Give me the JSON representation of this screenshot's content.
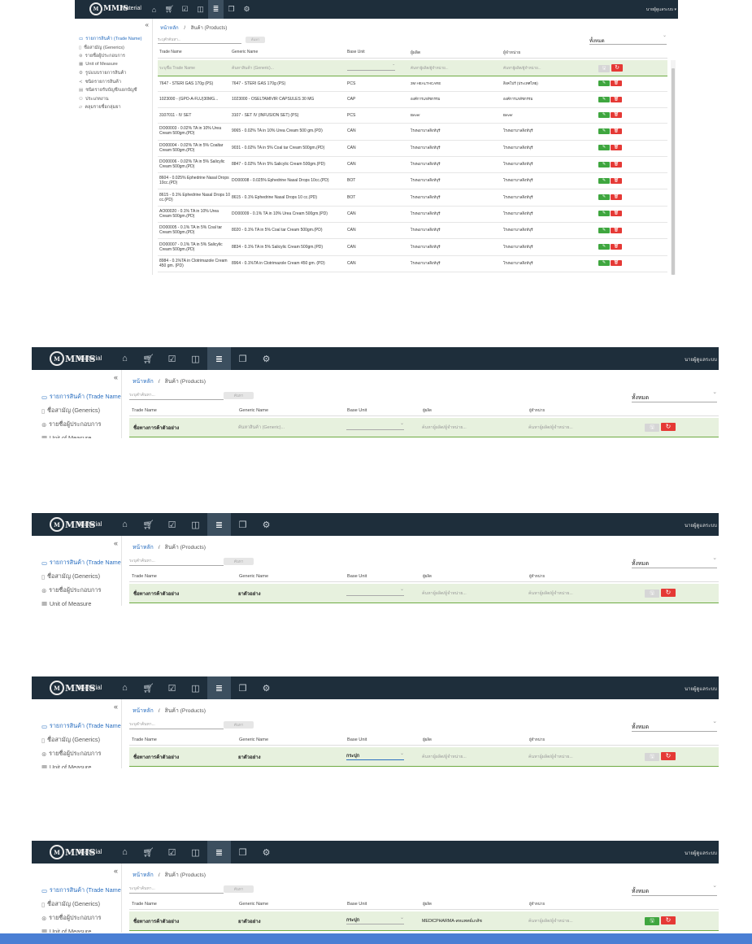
{
  "app": {
    "name": "Material",
    "logo_text": "MMIS",
    "user_full": "นายผู้ดูแลระบบ ▾",
    "user_short": "นายผู้ดูแลระบบ",
    "nav": [
      "home-icon",
      "cart-icon",
      "check-box-icon",
      "card-icon",
      "database-icon",
      "document-icon",
      "gear-icon"
    ],
    "nav_glyphs": [
      "⌂",
      "🛒︎",
      "☑",
      "◫",
      "≣",
      "❒",
      "⚙"
    ],
    "active_nav": 4
  },
  "sidebar": {
    "collapse": "«",
    "items": [
      {
        "label": "รายการสินค้า (Trade Name)",
        "icon": "folder-icon",
        "glyph": "▭"
      },
      {
        "label": "ชื่อสามัญ (Generics)",
        "icon": "file-icon",
        "glyph": "▯"
      },
      {
        "label": "รายชื่อผู้ประกอบการ",
        "icon": "users-icon",
        "glyph": "⊛"
      },
      {
        "label": "Unit of Measure",
        "icon": "grid-icon",
        "glyph": "▦"
      },
      {
        "label": "รูปแบบรายการสินค้า",
        "icon": "cog-icon",
        "glyph": "⚙"
      },
      {
        "label": "ชนิดรายการสินค้า",
        "icon": "share-icon",
        "glyph": "≺"
      },
      {
        "label": "ชนิดรายรับบัญชี/แยกบัญชี",
        "icon": "list-icon",
        "glyph": "▤"
      },
      {
        "label": "ประเภทงาน",
        "icon": "people-icon",
        "glyph": "⚇"
      },
      {
        "label": "คลุมรายชื่อกลุ่มยา",
        "icon": "folder-open-icon",
        "glyph": "▱"
      }
    ]
  },
  "breadcrumb": {
    "home": "หน้าหลัก",
    "sep": "/",
    "current": "สินค้า (Products)"
  },
  "search": {
    "placeholder": "ระบุคำค้นหา...",
    "button": "ค้นหา"
  },
  "filter": {
    "value": "ทั้งหมด",
    "chevron": "⌄"
  },
  "table": {
    "headers": [
      "Trade Name",
      "Generic Name",
      "Base Unit",
      "ผู้ผลิต",
      "ผู้จำหน่าย"
    ],
    "headers_small": [
      "Trade Name",
      "Generic Name",
      "Base Unit",
      "ผู้ผลิต",
      "ผู้จำหน่าย"
    ],
    "edit_placeholders": {
      "trade": "ระบุชื่อ Trade Name",
      "generic": "ค้นหาสินค้า (Generic)...",
      "maker": "ค้นหาผู้ผลิต/ผู้จำหน่าย...",
      "dealer": "ค้นหาผู้ผลิต/ผู้จำหน่าย..."
    },
    "rows": [
      [
        "7647 - STERI GAS 170g (PS)",
        "7647 - STERI GAS 170g (PS)",
        "PCS",
        "3M HEALTHCARE",
        "สิงคโปร์ (ประเทศไทย)"
      ],
      [
        "1023000 - (GPO-A-FLU)30MG...",
        "1023000 - OSELTAMIVIR CAPSULES 30 MG",
        "CAP",
        "องค์การเภสัชกรรม",
        "องค์การเภสัชกรรม"
      ],
      [
        "3107011 - IV SET",
        "3107 - SET IV (INFUSION SET) (PS)",
        "PCS",
        "Bever",
        "Bever"
      ],
      [
        "DO00003 - 0.02% TA in 10% Urea Cream 500gm.(PD)",
        "9065 - 0.02% TA in 10% Urea Cream 500 gm.(PD)",
        "CAN",
        "โรงพยาบาลสิงห์บุรี",
        "โรงพยาบาลสิงห์บุรี"
      ],
      [
        "DO00004 - 0.02% TA in 5% Coaltar Cream 500gm.(PD)",
        "9031 - 0.02% TA in 5% Coal tar Cream 500gm.(PD)",
        "CAN",
        "โรงพยาบาลสิงห์บุรี",
        "โรงพยาบาลสิงห์บุรี"
      ],
      [
        "DO00006 - 0.02% TA in 5% Salicylic Cream 500gm.(PD)",
        "8847 - 0.02% TA in 5% Salicylic Cream 500gm.(PD)",
        "CAN",
        "โรงพยาบาลสิงห์บุรี",
        "โรงพยาบาลสิงห์บุรี"
      ],
      [
        "8604 - 0.025% Ephedrine Nasal Drops 10cc.(PD)",
        "DO00008 - 0.025% Ephedrine Nasal Drops 10cc.(PD)",
        "BOT",
        "โรงพยาบาลสิงห์บุรี",
        "โรงพยาบาลสิงห์บุรี"
      ],
      [
        "8615 - 0.1% Ephedrine Nasal Drops 10 cc.(PD)",
        "8615 - 0.1% Ephedrine Nasal Drops 10 cc.(PD)",
        "BOT",
        "โรงพยาบาลสิงห์บุรี",
        "โรงพยาบาลสิงห์บุรี"
      ],
      [
        "AO00020 - 0.1% TA in 10% Urea Cream 500gm.(PD)",
        "DO00009 - 0.1% TA in 10% Urea Cream 500gm.(PD)",
        "CAN",
        "โรงพยาบาลสิงห์บุรี",
        "โรงพยาบาลสิงห์บุรี"
      ],
      [
        "DO00005 - 0.1% TA in 5% Coal tar Cream 500gm.(PD)",
        "8020 - 0.1% TA in 5% Coal tar Cream 500gm.(PD)",
        "CAN",
        "โรงพยาบาลสิงห์บุรี",
        "โรงพยาบาลสิงห์บุรี"
      ],
      [
        "DO00007 - 0.1% TA in 5% Salicylic Cream 500gm.(PD)",
        "8834 - 0.1% TA in 5% Salicylic Cream 500gm.(PD)",
        "CAN",
        "โรงพยาบาลสิงห์บุรี",
        "โรงพยาบาลสิงห์บุรี"
      ],
      [
        "8984 - 0.1%TA in Clotrimazole Cream 450 gm. (PD)",
        "8964 - 0.1%TA in Clotrimazole Cream 450 gm. (PD)",
        "CAN",
        "โรงพยาบาลสิงห์บุรี",
        "โรงพยาบาลสิงห์บุรี"
      ]
    ],
    "edit_glyph": "✎",
    "delete_glyph": "🗑︎",
    "save_glyph": "🖫︎",
    "refresh_glyph": "↻"
  },
  "steps": [
    {
      "trade": "ชื่อทางการค้าตัวอย่าง",
      "generic": "",
      "unit": "",
      "maker": "",
      "save_active": false
    },
    {
      "trade": "ชื่อทางการค้าตัวอย่าง",
      "generic": "ยาตัวอย่าง",
      "unit": "",
      "maker": "",
      "save_active": false
    },
    {
      "trade": "ชื่อทางการค้าตัวอย่าง",
      "generic": "ยาตัวอย่าง",
      "unit": "กระปุก",
      "maker": "",
      "save_active": false
    },
    {
      "trade": "ชื่อทางการค้าตัวอย่าง",
      "generic": "ยาตัวอย่าง",
      "unit": "กระปุก",
      "maker": "MEDICPHARMA-สหแพทย์เภสัช",
      "save_active": true
    }
  ],
  "colors": {
    "topbar": "#1e2e3b",
    "accent": "#2a6fc0",
    "edit_row": "#e7f1de",
    "green": "#3fa63f",
    "red": "#e53935",
    "bottom_bar": "#4a7fd4"
  }
}
